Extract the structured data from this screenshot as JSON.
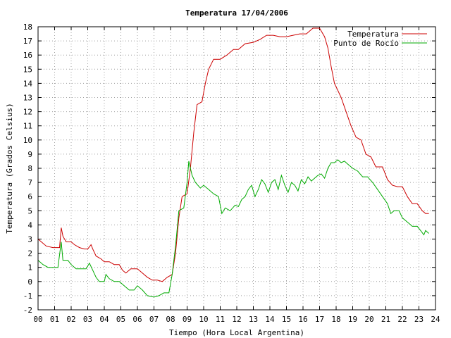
{
  "chart_data": {
    "type": "line",
    "title": "Temperatura 17/04/2006",
    "xlabel": "Tiempo (Hora Local Argentina)",
    "ylabel": "Temperatura (Grados Celsius)",
    "xlim": [
      0,
      24
    ],
    "ylim": [
      -2,
      18
    ],
    "x_ticks": [
      "00",
      "01",
      "02",
      "03",
      "04",
      "05",
      "06",
      "07",
      "08",
      "09",
      "10",
      "11",
      "12",
      "13",
      "14",
      "15",
      "16",
      "17",
      "18",
      "19",
      "20",
      "21",
      "22",
      "23",
      "24"
    ],
    "y_ticks": [
      "-2",
      "-1",
      "0",
      "1",
      "2",
      "3",
      "4",
      "5",
      "6",
      "7",
      "8",
      "9",
      "10",
      "11",
      "12",
      "13",
      "14",
      "15",
      "16",
      "17",
      "18"
    ],
    "grid": true,
    "legend_position": "top-right",
    "series": [
      {
        "name": "Temperatura",
        "color": "#cc0000",
        "points": [
          [
            0.0,
            3.0
          ],
          [
            0.2,
            2.8
          ],
          [
            0.5,
            2.5
          ],
          [
            0.9,
            2.4
          ],
          [
            1.3,
            2.4
          ],
          [
            1.4,
            3.8
          ],
          [
            1.5,
            3.2
          ],
          [
            1.7,
            2.8
          ],
          [
            2.0,
            2.8
          ],
          [
            2.2,
            2.6
          ],
          [
            2.5,
            2.4
          ],
          [
            2.8,
            2.3
          ],
          [
            3.0,
            2.3
          ],
          [
            3.2,
            2.6
          ],
          [
            3.3,
            2.3
          ],
          [
            3.5,
            1.8
          ],
          [
            3.8,
            1.6
          ],
          [
            4.0,
            1.4
          ],
          [
            4.3,
            1.4
          ],
          [
            4.6,
            1.2
          ],
          [
            4.9,
            1.2
          ],
          [
            5.1,
            0.8
          ],
          [
            5.3,
            0.6
          ],
          [
            5.6,
            0.9
          ],
          [
            6.0,
            0.9
          ],
          [
            6.3,
            0.6
          ],
          [
            6.6,
            0.3
          ],
          [
            6.9,
            0.1
          ],
          [
            7.2,
            0.1
          ],
          [
            7.5,
            0.0
          ],
          [
            7.8,
            0.3
          ],
          [
            8.1,
            0.5
          ],
          [
            8.3,
            2.0
          ],
          [
            8.5,
            4.5
          ],
          [
            8.7,
            6.0
          ],
          [
            9.0,
            6.2
          ],
          [
            9.2,
            8.0
          ],
          [
            9.4,
            10.5
          ],
          [
            9.6,
            12.5
          ],
          [
            9.9,
            12.7
          ],
          [
            10.1,
            14.0
          ],
          [
            10.3,
            15.0
          ],
          [
            10.6,
            15.7
          ],
          [
            11.0,
            15.7
          ],
          [
            11.4,
            16.0
          ],
          [
            11.8,
            16.4
          ],
          [
            12.1,
            16.4
          ],
          [
            12.5,
            16.8
          ],
          [
            13.0,
            16.9
          ],
          [
            13.4,
            17.1
          ],
          [
            13.8,
            17.4
          ],
          [
            14.2,
            17.4
          ],
          [
            14.6,
            17.3
          ],
          [
            15.0,
            17.3
          ],
          [
            15.4,
            17.4
          ],
          [
            15.8,
            17.5
          ],
          [
            16.2,
            17.5
          ],
          [
            16.6,
            17.9
          ],
          [
            17.0,
            17.9
          ],
          [
            17.3,
            17.3
          ],
          [
            17.5,
            16.5
          ],
          [
            17.7,
            15.2
          ],
          [
            17.9,
            14.0
          ],
          [
            18.1,
            13.5
          ],
          [
            18.3,
            13.0
          ],
          [
            18.6,
            12.0
          ],
          [
            18.9,
            11.0
          ],
          [
            19.2,
            10.2
          ],
          [
            19.5,
            10.0
          ],
          [
            19.8,
            9.0
          ],
          [
            20.1,
            8.8
          ],
          [
            20.4,
            8.1
          ],
          [
            20.8,
            8.1
          ],
          [
            21.1,
            7.2
          ],
          [
            21.4,
            6.8
          ],
          [
            21.7,
            6.7
          ],
          [
            22.0,
            6.7
          ],
          [
            22.3,
            6.0
          ],
          [
            22.6,
            5.5
          ],
          [
            22.9,
            5.5
          ],
          [
            23.2,
            5.0
          ],
          [
            23.4,
            4.8
          ],
          [
            23.6,
            4.8
          ]
        ]
      },
      {
        "name": "Punto de Rocío",
        "color": "#00aa00",
        "points": [
          [
            0.0,
            1.5
          ],
          [
            0.3,
            1.2
          ],
          [
            0.6,
            1.0
          ],
          [
            0.9,
            1.0
          ],
          [
            1.2,
            1.0
          ],
          [
            1.4,
            2.8
          ],
          [
            1.5,
            1.5
          ],
          [
            1.8,
            1.5
          ],
          [
            2.0,
            1.2
          ],
          [
            2.3,
            0.9
          ],
          [
            2.6,
            0.9
          ],
          [
            2.9,
            0.9
          ],
          [
            3.1,
            1.3
          ],
          [
            3.3,
            0.8
          ],
          [
            3.5,
            0.3
          ],
          [
            3.7,
            0.0
          ],
          [
            4.0,
            0.0
          ],
          [
            4.1,
            0.5
          ],
          [
            4.3,
            0.2
          ],
          [
            4.6,
            0.0
          ],
          [
            4.9,
            0.0
          ],
          [
            5.2,
            -0.3
          ],
          [
            5.5,
            -0.6
          ],
          [
            5.8,
            -0.6
          ],
          [
            6.0,
            -0.3
          ],
          [
            6.3,
            -0.6
          ],
          [
            6.6,
            -1.0
          ],
          [
            7.0,
            -1.1
          ],
          [
            7.3,
            -1.0
          ],
          [
            7.6,
            -0.8
          ],
          [
            7.9,
            -0.8
          ],
          [
            8.1,
            0.5
          ],
          [
            8.3,
            2.5
          ],
          [
            8.5,
            5.0
          ],
          [
            8.8,
            5.2
          ],
          [
            9.0,
            7.0
          ],
          [
            9.1,
            8.5
          ],
          [
            9.3,
            7.5
          ],
          [
            9.5,
            7.0
          ],
          [
            9.8,
            6.6
          ],
          [
            10.0,
            6.8
          ],
          [
            10.3,
            6.5
          ],
          [
            10.6,
            6.2
          ],
          [
            10.9,
            6.0
          ],
          [
            11.1,
            4.8
          ],
          [
            11.3,
            5.2
          ],
          [
            11.6,
            5.0
          ],
          [
            11.9,
            5.4
          ],
          [
            12.1,
            5.3
          ],
          [
            12.3,
            5.8
          ],
          [
            12.5,
            6.0
          ],
          [
            12.7,
            6.5
          ],
          [
            12.9,
            6.8
          ],
          [
            13.1,
            6.0
          ],
          [
            13.3,
            6.5
          ],
          [
            13.5,
            7.2
          ],
          [
            13.7,
            6.9
          ],
          [
            13.9,
            6.3
          ],
          [
            14.1,
            7.0
          ],
          [
            14.3,
            7.2
          ],
          [
            14.5,
            6.5
          ],
          [
            14.7,
            7.5
          ],
          [
            14.9,
            6.8
          ],
          [
            15.1,
            6.3
          ],
          [
            15.3,
            7.0
          ],
          [
            15.5,
            6.8
          ],
          [
            15.7,
            6.4
          ],
          [
            15.9,
            7.2
          ],
          [
            16.1,
            6.9
          ],
          [
            16.3,
            7.4
          ],
          [
            16.5,
            7.1
          ],
          [
            16.7,
            7.3
          ],
          [
            16.9,
            7.5
          ],
          [
            17.1,
            7.6
          ],
          [
            17.3,
            7.3
          ],
          [
            17.5,
            8.0
          ],
          [
            17.7,
            8.4
          ],
          [
            17.9,
            8.4
          ],
          [
            18.1,
            8.6
          ],
          [
            18.3,
            8.4
          ],
          [
            18.5,
            8.5
          ],
          [
            18.7,
            8.3
          ],
          [
            19.0,
            8.0
          ],
          [
            19.3,
            7.8
          ],
          [
            19.6,
            7.4
          ],
          [
            19.9,
            7.4
          ],
          [
            20.2,
            7.0
          ],
          [
            20.5,
            6.5
          ],
          [
            20.8,
            6.0
          ],
          [
            21.1,
            5.5
          ],
          [
            21.3,
            4.8
          ],
          [
            21.5,
            5.0
          ],
          [
            21.8,
            5.0
          ],
          [
            22.0,
            4.5
          ],
          [
            22.3,
            4.2
          ],
          [
            22.6,
            3.9
          ],
          [
            22.9,
            3.9
          ],
          [
            23.1,
            3.6
          ],
          [
            23.3,
            3.3
          ],
          [
            23.4,
            3.6
          ],
          [
            23.6,
            3.4
          ]
        ]
      }
    ]
  }
}
